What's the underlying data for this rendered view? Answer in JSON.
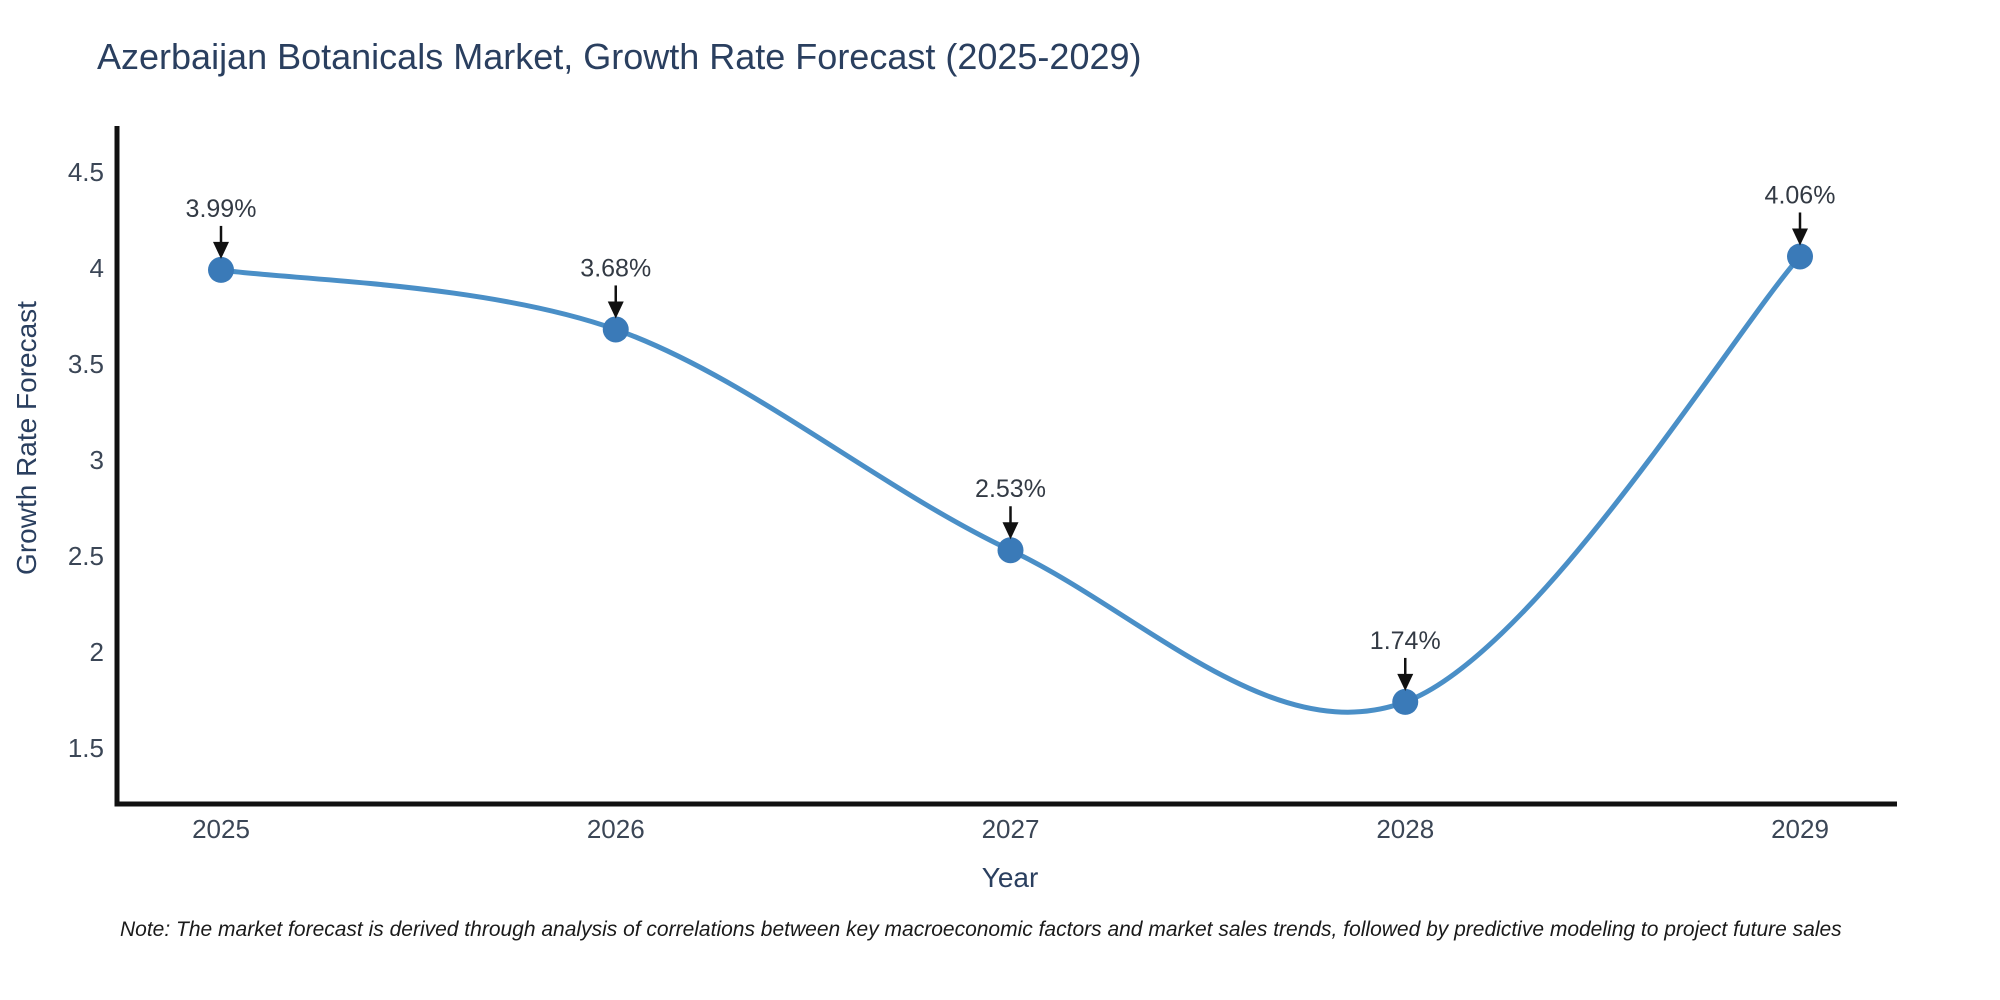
{
  "chart": {
    "title": "Azerbaijan Botanicals Market, Growth Rate Forecast (2025-2029)",
    "x_axis": {
      "title": "Year",
      "ticks": [
        "2025",
        "2026",
        "2027",
        "2028",
        "2029"
      ]
    },
    "y_axis": {
      "title": "Growth Rate Forecast",
      "ticks": [
        "1.5",
        "2",
        "2.5",
        "3",
        "3.5",
        "4",
        "4.5"
      ]
    },
    "note": "Note: The market forecast is derived through analysis of correlations between key macroeconomic factors and market sales trends, followed by predictive modeling to project future sales"
  },
  "chart_data": {
    "type": "line",
    "line_shape": "spline",
    "x": [
      2025,
      2026,
      2027,
      2028,
      2029
    ],
    "values": [
      3.99,
      3.68,
      2.53,
      1.74,
      4.06
    ],
    "point_labels": [
      "3.99%",
      "3.68%",
      "2.53%",
      "1.74%",
      "4.06%"
    ],
    "title": "Azerbaijan Botanicals Market, Growth Rate Forecast (2025-2029)",
    "xlabel": "Year",
    "ylabel": "Growth Rate Forecast",
    "ylim": [
      1.2,
      4.73
    ],
    "yticks": [
      1.5,
      2,
      2.5,
      3,
      3.5,
      4,
      4.5
    ],
    "grid": false,
    "legend": "none",
    "annotations": "value labels with downward arrows above each data point",
    "colors": {
      "line": "#4a8fc7",
      "marker": "#3a7ab8",
      "axis": "#111111",
      "arrow": "#111111",
      "annotation_text": "#333a44",
      "tick_text": "#3b4656",
      "title_text": "#2a3f5f",
      "note_text": "#1a1a1a",
      "background": "#ffffff"
    }
  }
}
